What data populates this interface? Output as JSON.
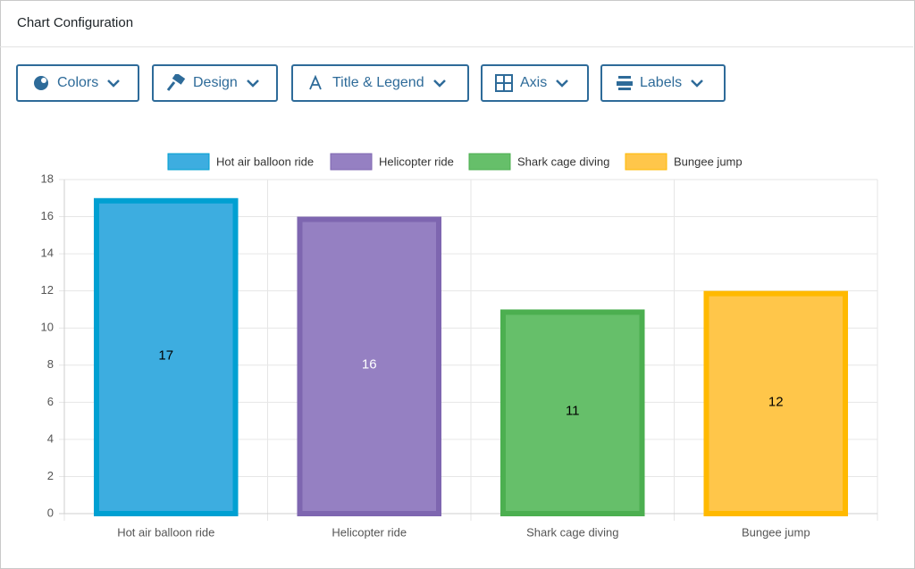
{
  "header": {
    "title": "Chart Configuration"
  },
  "toolbar": {
    "buttons": [
      "Colors",
      "Design",
      "Title & Legend",
      "Axis",
      "Labels"
    ]
  },
  "chart_data": {
    "type": "bar",
    "categories": [
      "Hot air balloon ride",
      "Helicopter ride",
      "Shark cage diving",
      "Bungee jump"
    ],
    "values": [
      17,
      16,
      11,
      12
    ],
    "colors": [
      "#3dade0",
      "#9580c2",
      "#66bf6a",
      "#ffc64a"
    ],
    "border_colors": [
      "#00a0d2",
      "#7e66b0",
      "#4caf50",
      "#ffb900"
    ],
    "label_colors": [
      "#000000",
      "#ffffff",
      "#000000",
      "#000000"
    ],
    "ylim": [
      0,
      18
    ],
    "yticks": [
      0,
      2,
      4,
      6,
      8,
      10,
      12,
      14,
      16,
      18
    ],
    "grid": true,
    "legend": "top"
  }
}
